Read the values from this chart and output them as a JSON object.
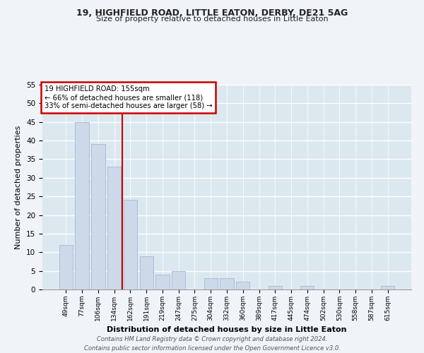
{
  "title": "19, HIGHFIELD ROAD, LITTLE EATON, DERBY, DE21 5AG",
  "subtitle": "Size of property relative to detached houses in Little Eaton",
  "xlabel": "Distribution of detached houses by size in Little Eaton",
  "ylabel": "Number of detached properties",
  "categories": [
    "49sqm",
    "77sqm",
    "106sqm",
    "134sqm",
    "162sqm",
    "191sqm",
    "219sqm",
    "247sqm",
    "275sqm",
    "304sqm",
    "332sqm",
    "360sqm",
    "389sqm",
    "417sqm",
    "445sqm",
    "474sqm",
    "502sqm",
    "530sqm",
    "558sqm",
    "587sqm",
    "615sqm"
  ],
  "values": [
    12,
    45,
    39,
    33,
    24,
    9,
    4,
    5,
    0,
    3,
    3,
    2,
    0,
    1,
    0,
    1,
    0,
    0,
    0,
    0,
    1
  ],
  "bar_color": "#ccd9e8",
  "bar_edge_color": "#aabfd4",
  "property_line_x": 3.5,
  "annotation_line1": "19 HIGHFIELD ROAD: 155sqm",
  "annotation_line2": "← 66% of detached houses are smaller (118)",
  "annotation_line3": "33% of semi-detached houses are larger (58) →",
  "annotation_box_color": "#cc0000",
  "vline_color": "#cc0000",
  "plot_bg_color": "#dce8f0",
  "fig_bg_color": "#f0f4f8",
  "grid_color": "#ffffff",
  "footnote1": "Contains HM Land Registry data © Crown copyright and database right 2024.",
  "footnote2": "Contains public sector information licensed under the Open Government Licence v3.0.",
  "ylim": [
    0,
    55
  ],
  "yticks": [
    0,
    5,
    10,
    15,
    20,
    25,
    30,
    35,
    40,
    45,
    50,
    55
  ]
}
